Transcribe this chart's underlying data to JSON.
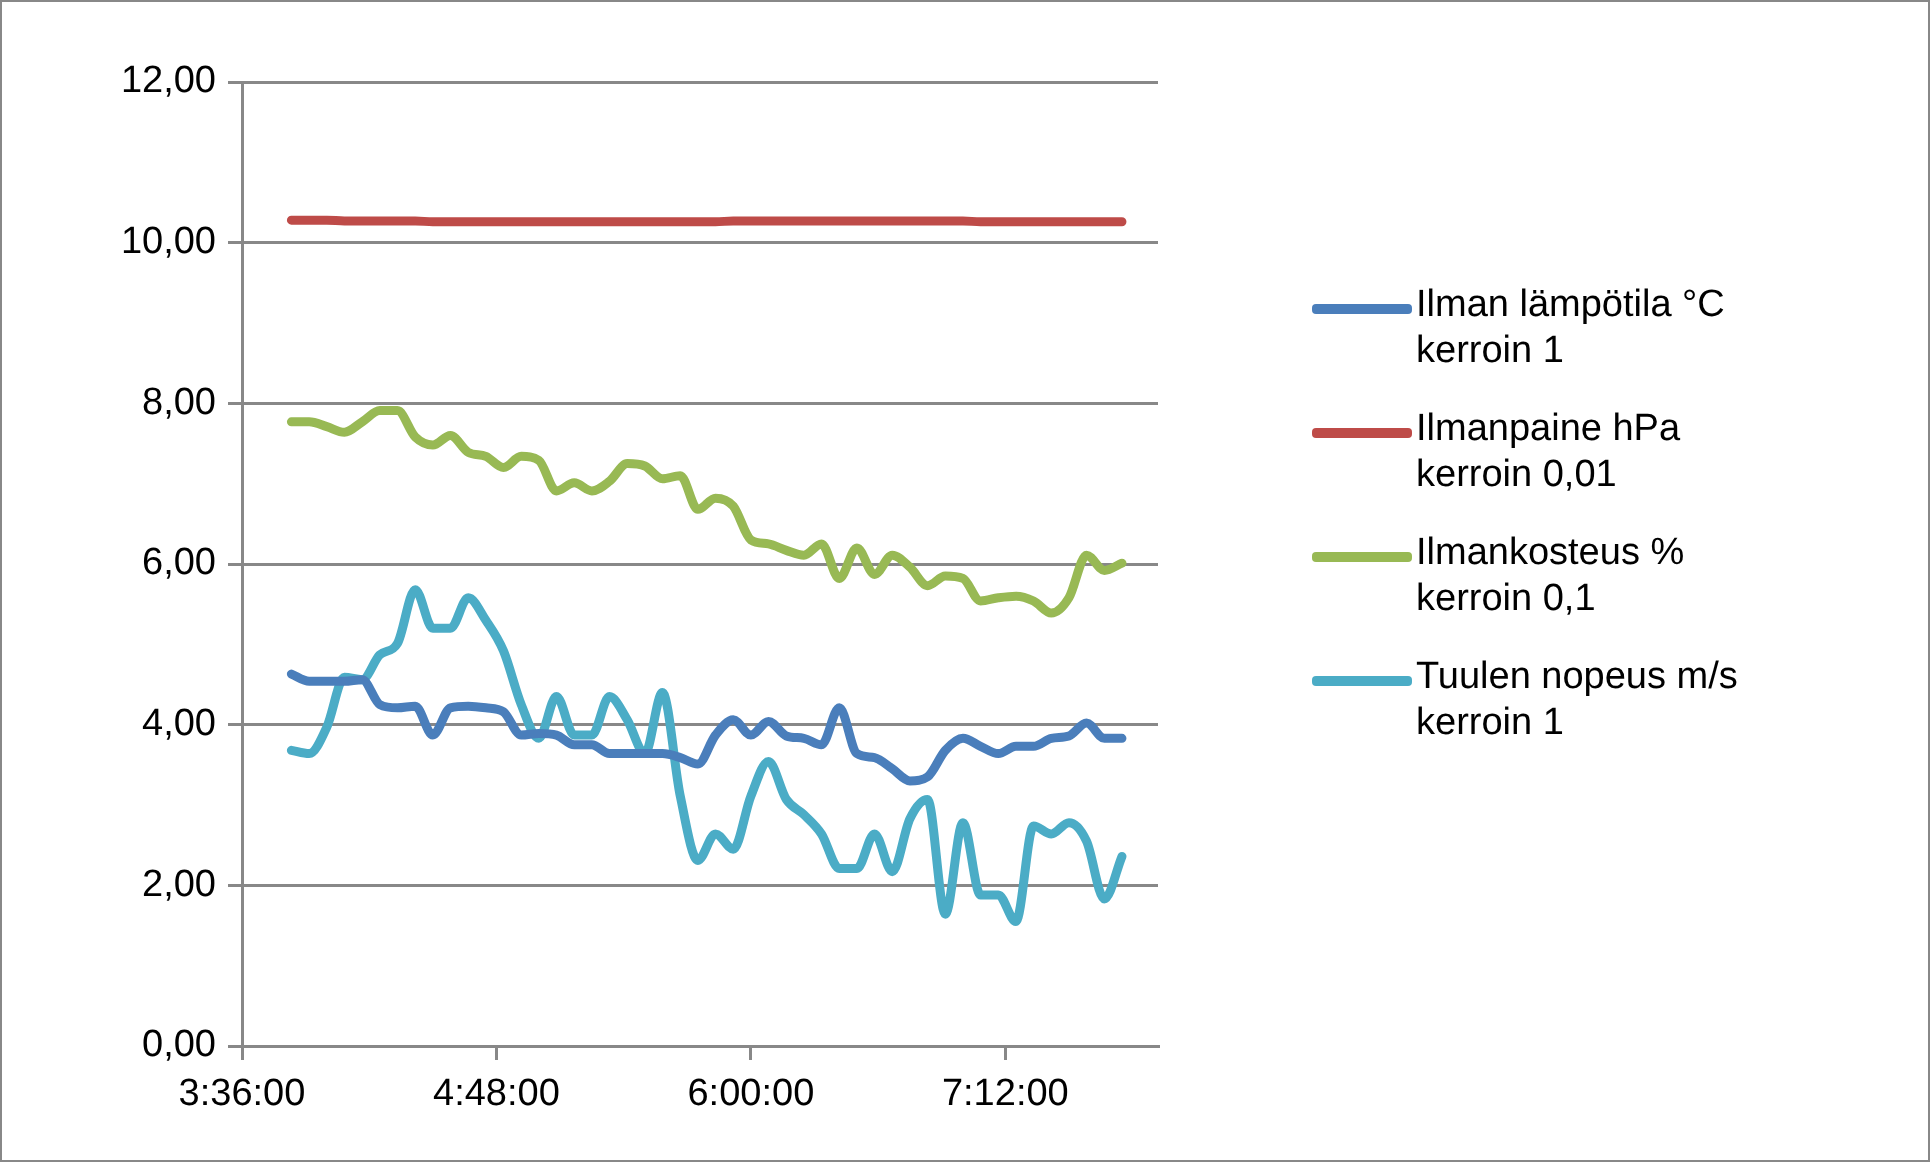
{
  "chart_data": {
    "type": "line",
    "x": [
      3.833,
      3.917,
      4.0,
      4.083,
      4.167,
      4.25,
      4.333,
      4.417,
      4.5,
      4.583,
      4.667,
      4.75,
      4.833,
      4.917,
      5.0,
      5.083,
      5.167,
      5.25,
      5.333,
      5.417,
      5.5,
      5.583,
      5.667,
      5.75,
      5.833,
      5.917,
      6.0,
      6.083,
      6.167,
      6.25,
      6.333,
      6.417,
      6.5,
      6.583,
      6.667,
      6.75,
      6.833,
      6.917,
      7.0,
      7.083,
      7.167,
      7.25,
      7.333,
      7.417,
      7.5,
      7.583,
      7.667,
      7.75
    ],
    "series": [
      {
        "name": "Ilman lämpötila °C\nkerroin 1",
        "color": "#4a7ebb",
        "values": [
          4.63,
          4.54,
          4.54,
          4.54,
          4.56,
          4.25,
          4.21,
          4.23,
          3.87,
          4.21,
          4.23,
          4.21,
          4.16,
          3.87,
          3.89,
          3.87,
          3.75,
          3.75,
          3.64,
          3.64,
          3.64,
          3.64,
          3.59,
          3.51,
          3.87,
          4.06,
          3.87,
          4.04,
          3.86,
          3.83,
          3.75,
          4.21,
          3.64,
          3.59,
          3.45,
          3.3,
          3.35,
          3.68,
          3.83,
          3.73,
          3.64,
          3.73,
          3.73,
          3.83,
          3.86,
          4.02,
          3.83,
          3.83
        ]
      },
      {
        "name": "Ilmanpaine hPa\nkerroin 0,01",
        "color": "#be4b48",
        "values": [
          10.28,
          10.28,
          10.28,
          10.27,
          10.27,
          10.27,
          10.27,
          10.27,
          10.26,
          10.26,
          10.26,
          10.26,
          10.26,
          10.26,
          10.26,
          10.26,
          10.26,
          10.26,
          10.26,
          10.26,
          10.26,
          10.26,
          10.26,
          10.26,
          10.26,
          10.27,
          10.27,
          10.27,
          10.27,
          10.27,
          10.27,
          10.27,
          10.27,
          10.27,
          10.27,
          10.27,
          10.27,
          10.27,
          10.27,
          10.26,
          10.26,
          10.26,
          10.26,
          10.26,
          10.26,
          10.26,
          10.26,
          10.26
        ]
      },
      {
        "name": "Ilmankosteus %\nkerroin 0,1",
        "color": "#98b954",
        "values": [
          7.77,
          7.77,
          7.71,
          7.64,
          7.77,
          7.91,
          7.91,
          7.58,
          7.48,
          7.6,
          7.39,
          7.34,
          7.2,
          7.34,
          7.29,
          6.91,
          7.01,
          6.91,
          7.03,
          7.25,
          7.22,
          7.06,
          7.1,
          6.68,
          6.82,
          6.72,
          6.3,
          6.25,
          6.17,
          6.11,
          6.25,
          5.82,
          6.2,
          5.87,
          6.11,
          5.96,
          5.73,
          5.85,
          5.82,
          5.54,
          5.58,
          5.6,
          5.54,
          5.39,
          5.58,
          6.11,
          5.92,
          6.01
        ]
      },
      {
        "name": "Tuulen nopeus m/s\nkerroin 1",
        "color": "#4bacc6",
        "values": [
          3.68,
          3.64,
          3.97,
          4.59,
          4.56,
          4.87,
          5.01,
          5.68,
          5.2,
          5.2,
          5.58,
          5.3,
          4.92,
          4.25,
          3.83,
          4.35,
          3.87,
          3.87,
          4.35,
          4.06,
          3.64,
          4.4,
          3.11,
          2.31,
          2.64,
          2.45,
          3.11,
          3.54,
          3.07,
          2.88,
          2.64,
          2.21,
          2.21,
          2.64,
          2.17,
          2.83,
          3.07,
          1.64,
          2.78,
          1.88,
          1.88,
          1.55,
          2.74,
          2.64,
          2.78,
          2.55,
          1.83,
          2.36
        ]
      }
    ],
    "xlim": [
      3.6,
      7.92
    ],
    "xticks": [
      {
        "value": 3.6,
        "label": "3:36:00"
      },
      {
        "value": 4.8,
        "label": "4:48:00"
      },
      {
        "value": 6.0,
        "label": "6:00:00"
      },
      {
        "value": 7.2,
        "label": "7:12:00"
      }
    ],
    "ylim": [
      0,
      12
    ],
    "yticks": [
      {
        "value": 0,
        "label": "0,00"
      },
      {
        "value": 2,
        "label": "2,00"
      },
      {
        "value": 4,
        "label": "4,00"
      },
      {
        "value": 6,
        "label": "6,00"
      },
      {
        "value": 8,
        "label": "8,00"
      },
      {
        "value": 10,
        "label": "10,00"
      },
      {
        "value": 12,
        "label": "12,00"
      }
    ],
    "grid": "y",
    "legend": "right",
    "marker": "none",
    "line_style": "solid"
  }
}
